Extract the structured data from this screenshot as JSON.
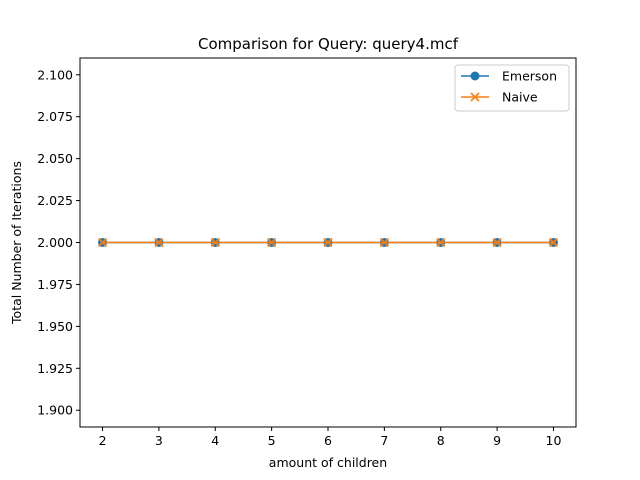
{
  "chart_data": {
    "type": "line",
    "title": "Comparison for Query: query4.mcf",
    "xlabel": "amount of children",
    "ylabel": "Total Number of Iterations",
    "x": [
      2,
      3,
      4,
      5,
      6,
      7,
      8,
      9,
      10
    ],
    "xlim": [
      1.6,
      10.4
    ],
    "ylim": [
      1.89,
      2.11
    ],
    "xticks": [
      2,
      3,
      4,
      5,
      6,
      7,
      8,
      9,
      10
    ],
    "yticks": [
      1.9,
      1.925,
      1.95,
      1.975,
      2.0,
      2.025,
      2.05,
      2.075,
      2.1
    ],
    "ytick_labels": [
      "1.900",
      "1.925",
      "1.950",
      "1.975",
      "2.000",
      "2.025",
      "2.050",
      "2.075",
      "2.100"
    ],
    "grid": false,
    "legend_position": "top-right",
    "series": [
      {
        "name": "Emerson",
        "values": [
          2,
          2,
          2,
          2,
          2,
          2,
          2,
          2,
          2
        ],
        "color": "#1f77b4",
        "marker": "circle"
      },
      {
        "name": "Naive",
        "values": [
          2,
          2,
          2,
          2,
          2,
          2,
          2,
          2,
          2
        ],
        "color": "#ff7f0e",
        "marker": "x"
      }
    ]
  }
}
